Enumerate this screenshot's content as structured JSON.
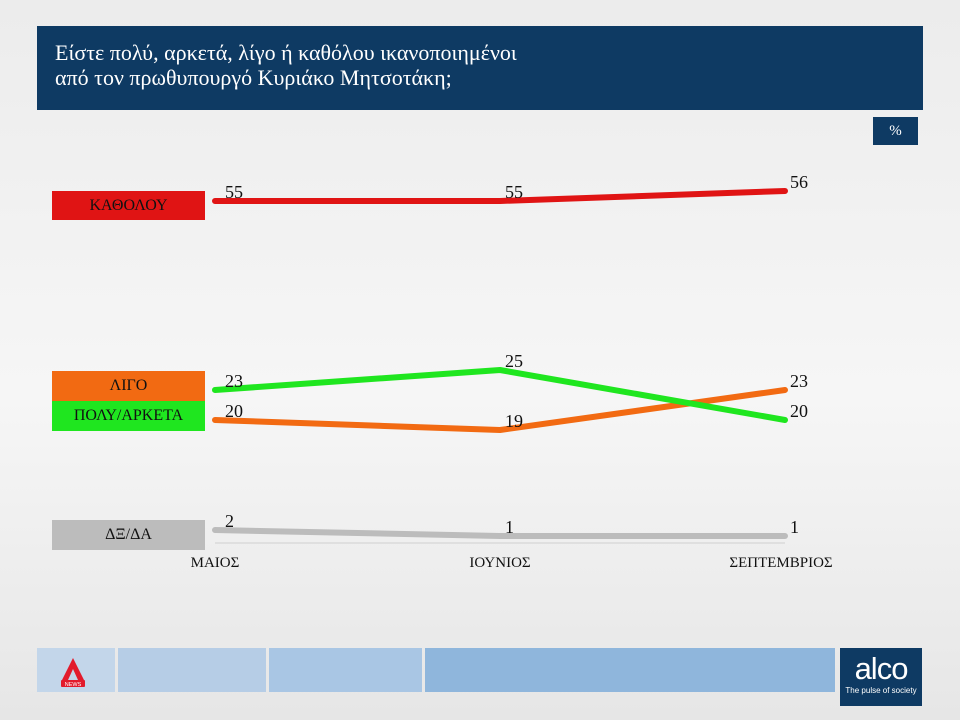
{
  "header": {
    "title_line1": "Είστε πολύ, αρκετά, λίγο ή καθόλου ικανοποιημένοι",
    "title_line2": "από τον πρωθυπουργό Κυριάκο Μητσοτάκη;"
  },
  "unit_badge": "%",
  "labels": {
    "katholou": "ΚΑΘΟΛΟΥ",
    "ligo": "ΛΙΓΟ",
    "poly": "ΠΟΛΥ/ΑΡΚΕΤΑ",
    "dxda": "ΔΞ/ΔΑ"
  },
  "chart_data": {
    "type": "line",
    "title": "Είστε πολύ, αρκετά, λίγο ή καθόλου ικανοποιημένοι από τον πρωθυπουργό Κυριάκο Μητσοτάκη;",
    "unit": "%",
    "categories": [
      "ΜΑΙΟΣ",
      "ΙΟΥΝΙΟΣ",
      "ΣΕΠΤΕΜΒΡΙΟΣ"
    ],
    "series": [
      {
        "name": "ΚΑΘΟΛΟΥ",
        "values": [
          55,
          55,
          56
        ],
        "color": "#e01414"
      },
      {
        "name": "ΛΙΓΟ",
        "values": [
          20,
          19,
          23
        ],
        "color": "#f26a12"
      },
      {
        "name": "ΠΟΛΥ/ΑΡΚΕΤΑ",
        "values": [
          23,
          25,
          20
        ],
        "color": "#1fe61f"
      },
      {
        "name": "ΔΞ/ΔΑ",
        "values": [
          2,
          1,
          1
        ],
        "color": "#bcbcbc"
      }
    ],
    "grid": false,
    "legend": "left"
  },
  "footer": {
    "logo_name": "alco",
    "logo_tagline": "The pulse of society",
    "badge_text": "NEWS",
    "colors": {
      "navy": "#0e3a63",
      "light_blue": "#9fc0e0"
    }
  }
}
